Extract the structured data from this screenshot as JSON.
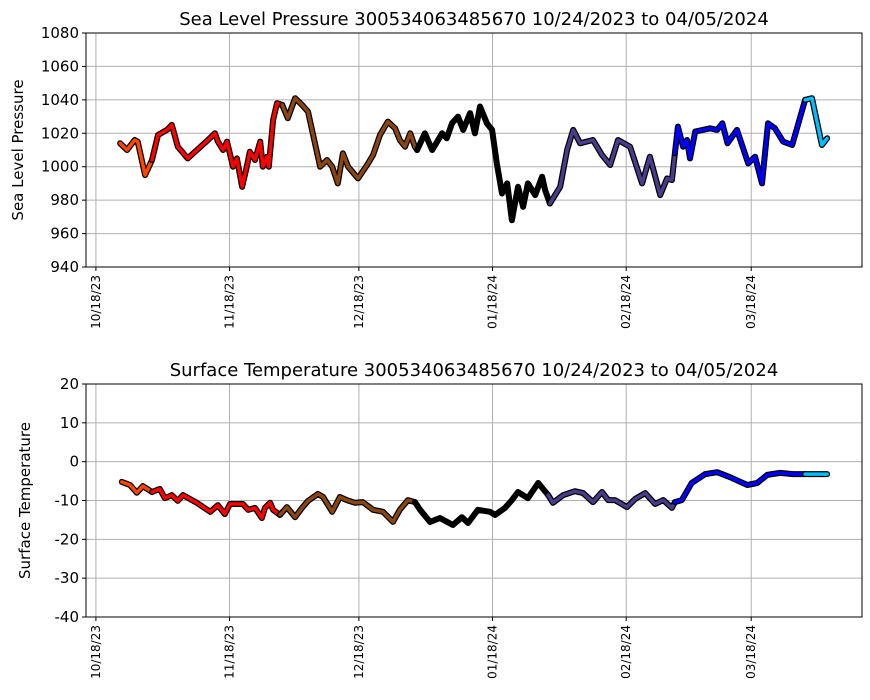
{
  "chart_data": [
    {
      "type": "line",
      "title": "Sea Level Pressure 300534063485670  10/24/2023 to 04/05/2024",
      "xlabel": "",
      "ylabel": "Sea Level Pressure",
      "x_units": "days since 10/18/2023",
      "xlim": [
        -2.3,
        177.7
      ],
      "ylim": [
        940,
        1080
      ],
      "yticks": [
        940,
        960,
        980,
        1000,
        1020,
        1040,
        1060,
        1080
      ],
      "xticks": [
        {
          "day": 0,
          "label": "10/18/23"
        },
        {
          "day": 31,
          "label": "11/18/23"
        },
        {
          "day": 61,
          "label": "12/18/23"
        },
        {
          "day": 92,
          "label": "01/18/24"
        },
        {
          "day": 123,
          "label": "02/18/24"
        },
        {
          "day": 152,
          "label": "03/18/24"
        }
      ],
      "grid": true,
      "segments": [
        {
          "color": "#ff4500",
          "points": [
            [
              5.6,
              1014
            ],
            [
              7.2,
              1010
            ],
            [
              9.0,
              1016
            ],
            [
              9.7,
              1015
            ],
            [
              11.4,
              995
            ],
            [
              13.0,
              1004
            ]
          ]
        },
        {
          "color": "#ff0000",
          "points": [
            [
              13.0,
              1004
            ],
            [
              14.4,
              1019
            ],
            [
              16.5,
              1022
            ],
            [
              17.6,
              1025
            ],
            [
              19.0,
              1012
            ],
            [
              21.3,
              1005
            ],
            [
              23.0,
              1009
            ],
            [
              26.0,
              1016
            ],
            [
              27.6,
              1020
            ],
            [
              28.3,
              1015
            ],
            [
              29.5,
              1010
            ],
            [
              30.4,
              1015
            ],
            [
              31.8,
              1000
            ],
            [
              32.7,
              1005
            ],
            [
              33.9,
              988
            ],
            [
              35.0,
              1000
            ],
            [
              35.7,
              1009
            ],
            [
              36.9,
              1004
            ],
            [
              38.1,
              1015
            ],
            [
              38.7,
              1000
            ],
            [
              39.7,
              1006
            ],
            [
              40.1,
              1000
            ],
            [
              41.1,
              1028
            ],
            [
              42.0,
              1038
            ],
            [
              43.2,
              1037
            ]
          ]
        },
        {
          "color": "#8b4513",
          "points": [
            [
              43.2,
              1037
            ],
            [
              44.5,
              1029
            ],
            [
              46.2,
              1041
            ],
            [
              47.8,
              1037
            ],
            [
              49.2,
              1033
            ],
            [
              52.0,
              1000
            ],
            [
              53.6,
              1004
            ],
            [
              54.8,
              1000
            ],
            [
              56.1,
              990
            ],
            [
              57.3,
              1008
            ],
            [
              58.5,
              1000
            ],
            [
              60.8,
              993
            ],
            [
              62.9,
              1001
            ],
            [
              64.3,
              1007
            ],
            [
              65.9,
              1019
            ],
            [
              67.7,
              1027
            ],
            [
              69.4,
              1023
            ],
            [
              70.5,
              1016
            ],
            [
              71.7,
              1012
            ],
            [
              72.9,
              1020
            ],
            [
              74.0,
              1012
            ],
            [
              74.5,
              1010
            ]
          ]
        },
        {
          "color": "#000000",
          "points": [
            [
              74.5,
              1010
            ],
            [
              76.3,
              1020
            ],
            [
              78.0,
              1010
            ],
            [
              80.3,
              1020
            ],
            [
              81.4,
              1017
            ],
            [
              82.6,
              1026
            ],
            [
              84.0,
              1030
            ],
            [
              85.2,
              1022
            ],
            [
              86.8,
              1032
            ],
            [
              87.9,
              1020
            ],
            [
              89.1,
              1036
            ],
            [
              90.7,
              1026
            ],
            [
              91.9,
              1022
            ],
            [
              93.0,
              1002
            ],
            [
              94.2,
              984
            ],
            [
              95.4,
              990
            ],
            [
              96.5,
              968
            ],
            [
              97.9,
              988
            ],
            [
              99.1,
              976
            ],
            [
              100.2,
              990
            ],
            [
              101.9,
              983
            ],
            [
              103.5,
              994
            ],
            [
              104.2,
              986
            ],
            [
              105.3,
              978
            ]
          ]
        },
        {
          "color": "#483d8b",
          "points": [
            [
              105.3,
              978
            ],
            [
              107.7,
              988
            ],
            [
              109.3,
              1010
            ],
            [
              110.7,
              1022
            ],
            [
              112.3,
              1014
            ],
            [
              115.3,
              1016
            ],
            [
              117.4,
              1007
            ],
            [
              119.3,
              1001
            ],
            [
              121.1,
              1016
            ],
            [
              123.9,
              1012
            ],
            [
              126.7,
              990
            ],
            [
              128.5,
              1006
            ],
            [
              130.9,
              983
            ],
            [
              132.5,
              993
            ],
            [
              133.6,
              992
            ],
            [
              134.3,
              1008
            ]
          ]
        },
        {
          "color": "#0000ff",
          "points": [
            [
              134.3,
              1008
            ],
            [
              135.0,
              1024
            ],
            [
              136.2,
              1012
            ],
            [
              137.1,
              1016
            ],
            [
              137.8,
              1005
            ],
            [
              139.0,
              1021
            ],
            [
              142.5,
              1023
            ],
            [
              144.1,
              1022
            ],
            [
              145.3,
              1026
            ],
            [
              146.5,
              1014
            ],
            [
              148.7,
              1022
            ],
            [
              151.3,
              1002
            ],
            [
              152.9,
              1006
            ],
            [
              154.5,
              990
            ],
            [
              155.9,
              1026
            ],
            [
              157.5,
              1023
            ],
            [
              159.4,
              1015
            ],
            [
              161.5,
              1013
            ],
            [
              164.5,
              1040
            ]
          ]
        },
        {
          "color": "#00bfff",
          "points": [
            [
              164.5,
              1040
            ],
            [
              166.1,
              1041
            ],
            [
              168.4,
              1013
            ],
            [
              169.6,
              1017
            ]
          ]
        }
      ]
    },
    {
      "type": "line",
      "title": "Surface Temperature 300534063485670  10/24/2023 to 04/05/2024",
      "xlabel": "",
      "ylabel": "Surface Temperature",
      "x_units": "days since 10/18/2023",
      "xlim": [
        -2.3,
        177.7
      ],
      "ylim": [
        -40,
        20
      ],
      "yticks": [
        -40,
        -30,
        -20,
        -10,
        0,
        10,
        20
      ],
      "xticks": [
        {
          "day": 0,
          "label": "10/18/23"
        },
        {
          "day": 31,
          "label": "11/18/23"
        },
        {
          "day": 61,
          "label": "12/18/23"
        },
        {
          "day": 92,
          "label": "01/18/24"
        },
        {
          "day": 123,
          "label": "02/18/24"
        },
        {
          "day": 152,
          "label": "03/18/24"
        }
      ],
      "grid": true,
      "segments": [
        {
          "color": "#ff4500",
          "points": [
            [
              6.0,
              -5.2
            ],
            [
              7.9,
              -6.0
            ],
            [
              9.5,
              -8.0
            ],
            [
              10.9,
              -6.3
            ],
            [
              13.0,
              -7.8
            ]
          ]
        },
        {
          "color": "#ff0000",
          "points": [
            [
              13.0,
              -7.8
            ],
            [
              14.8,
              -7.0
            ],
            [
              16.0,
              -9.4
            ],
            [
              17.6,
              -8.6
            ],
            [
              19.0,
              -10.1
            ],
            [
              20.2,
              -8.6
            ],
            [
              23.4,
              -10.6
            ],
            [
              26.5,
              -12.9
            ],
            [
              28.3,
              -11.2
            ],
            [
              29.9,
              -13.5
            ],
            [
              31.1,
              -10.9
            ],
            [
              34.1,
              -10.9
            ],
            [
              35.3,
              -12.4
            ],
            [
              36.9,
              -11.9
            ],
            [
              38.5,
              -14.5
            ],
            [
              39.2,
              -11.9
            ],
            [
              40.4,
              -10.6
            ],
            [
              41.1,
              -12.4
            ],
            [
              42.7,
              -13.7
            ]
          ]
        },
        {
          "color": "#8b4513",
          "points": [
            [
              42.7,
              -13.7
            ],
            [
              44.3,
              -11.7
            ],
            [
              46.2,
              -14.3
            ],
            [
              47.8,
              -11.9
            ],
            [
              49.2,
              -10.1
            ],
            [
              51.5,
              -8.3
            ],
            [
              52.7,
              -9.1
            ],
            [
              54.8,
              -12.9
            ],
            [
              56.6,
              -9.1
            ],
            [
              58.2,
              -9.9
            ],
            [
              60.1,
              -10.6
            ],
            [
              61.9,
              -10.4
            ],
            [
              64.3,
              -12.4
            ],
            [
              66.6,
              -12.9
            ],
            [
              68.9,
              -15.5
            ],
            [
              70.5,
              -12.4
            ],
            [
              72.4,
              -9.9
            ],
            [
              74.0,
              -10.4
            ]
          ]
        },
        {
          "color": "#000000",
          "points": [
            [
              74.0,
              -10.4
            ],
            [
              75.2,
              -12.4
            ],
            [
              77.5,
              -15.5
            ],
            [
              79.8,
              -14.5
            ],
            [
              82.8,
              -16.3
            ],
            [
              84.9,
              -14.3
            ],
            [
              86.3,
              -15.8
            ],
            [
              88.6,
              -12.4
            ],
            [
              91.4,
              -12.9
            ],
            [
              92.6,
              -13.7
            ],
            [
              94.9,
              -11.9
            ],
            [
              96.5,
              -9.9
            ],
            [
              97.9,
              -7.8
            ],
            [
              100.2,
              -9.4
            ],
            [
              102.6,
              -5.5
            ],
            [
              104.9,
              -8.6
            ]
          ]
        },
        {
          "color": "#483d8b",
          "points": [
            [
              104.9,
              -8.6
            ],
            [
              106.0,
              -10.6
            ],
            [
              108.4,
              -8.6
            ],
            [
              111.1,
              -7.6
            ],
            [
              113.0,
              -8.1
            ],
            [
              115.3,
              -10.4
            ],
            [
              117.4,
              -7.8
            ],
            [
              118.8,
              -9.9
            ],
            [
              120.4,
              -9.9
            ],
            [
              123.2,
              -11.7
            ],
            [
              125.1,
              -9.6
            ],
            [
              127.4,
              -8.1
            ],
            [
              129.7,
              -10.9
            ],
            [
              131.6,
              -9.9
            ],
            [
              133.6,
              -11.9
            ],
            [
              134.3,
              -10.4
            ]
          ]
        },
        {
          "color": "#0000ff",
          "points": [
            [
              134.3,
              -10.4
            ],
            [
              135.9,
              -9.9
            ],
            [
              138.2,
              -5.5
            ],
            [
              141.3,
              -3.2
            ],
            [
              144.1,
              -2.7
            ],
            [
              147.1,
              -4.0
            ],
            [
              151.1,
              -6.0
            ],
            [
              153.4,
              -5.5
            ],
            [
              155.7,
              -3.4
            ],
            [
              158.7,
              -2.9
            ],
            [
              161.7,
              -3.2
            ],
            [
              164.5,
              -3.2
            ]
          ]
        },
        {
          "color": "#00bfff",
          "points": [
            [
              164.5,
              -3.2
            ],
            [
              169.6,
              -3.2
            ]
          ]
        }
      ]
    }
  ]
}
